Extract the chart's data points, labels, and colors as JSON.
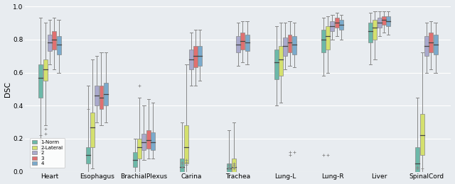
{
  "organs": [
    "Heart",
    "Esophagus",
    "BrachialPlexus",
    "Carina",
    "Trachea",
    "Lung-L",
    "Lung-R",
    "Liver",
    "SpinalCord"
  ],
  "series_labels": [
    "1-Norm",
    "2-Lateral",
    "2",
    "3",
    "4"
  ],
  "series_colors": [
    "#6cb8a8",
    "#d4e06e",
    "#a9a9cc",
    "#e07070",
    "#7aaacc"
  ],
  "background_color": "#e8ecf0",
  "ylabel": "DSC",
  "ylim": [
    0.0,
    1.0
  ],
  "data": {
    "Heart": [
      [
        0.12,
        0.45,
        0.57,
        0.65,
        0.93
      ],
      [
        0.28,
        0.55,
        0.62,
        0.68,
        0.9
      ],
      [
        0.65,
        0.73,
        0.78,
        0.83,
        0.92
      ],
      [
        0.62,
        0.74,
        0.8,
        0.85,
        0.93
      ],
      [
        0.6,
        0.71,
        0.77,
        0.82,
        0.92
      ]
    ],
    "Esophagus": [
      [
        0.0,
        0.05,
        0.1,
        0.15,
        0.52
      ],
      [
        0.02,
        0.15,
        0.27,
        0.36,
        0.68
      ],
      [
        0.3,
        0.4,
        0.46,
        0.52,
        0.7
      ],
      [
        0.28,
        0.38,
        0.45,
        0.52,
        0.72
      ],
      [
        0.3,
        0.4,
        0.47,
        0.54,
        0.72
      ]
    ],
    "BrachialPlexus": [
      [
        0.0,
        0.03,
        0.07,
        0.12,
        0.2
      ],
      [
        0.0,
        0.08,
        0.15,
        0.2,
        0.45
      ],
      [
        0.07,
        0.13,
        0.18,
        0.23,
        0.4
      ],
      [
        0.08,
        0.14,
        0.19,
        0.25,
        0.44
      ],
      [
        0.08,
        0.13,
        0.18,
        0.24,
        0.42
      ]
    ],
    "Carina": [
      [
        0.0,
        0.0,
        0.03,
        0.08,
        0.3
      ],
      [
        0.0,
        0.05,
        0.15,
        0.28,
        0.65
      ],
      [
        0.52,
        0.62,
        0.68,
        0.74,
        0.84
      ],
      [
        0.52,
        0.63,
        0.7,
        0.76,
        0.86
      ],
      [
        0.55,
        0.64,
        0.7,
        0.76,
        0.86
      ]
    ],
    "Trachea": [
      [
        0.0,
        0.0,
        0.02,
        0.05,
        0.25
      ],
      [
        0.0,
        0.0,
        0.03,
        0.08,
        0.3
      ],
      [
        0.64,
        0.72,
        0.77,
        0.82,
        0.9
      ],
      [
        0.66,
        0.74,
        0.79,
        0.84,
        0.91
      ],
      [
        0.65,
        0.73,
        0.78,
        0.83,
        0.91
      ]
    ],
    "Lung-L": [
      [
        0.4,
        0.56,
        0.66,
        0.74,
        0.88
      ],
      [
        0.42,
        0.58,
        0.68,
        0.76,
        0.9
      ],
      [
        0.62,
        0.7,
        0.76,
        0.81,
        0.9
      ],
      [
        0.64,
        0.72,
        0.78,
        0.83,
        0.91
      ],
      [
        0.63,
        0.71,
        0.77,
        0.82,
        0.9
      ]
    ],
    "Lung-R": [
      [
        0.58,
        0.72,
        0.8,
        0.86,
        0.93
      ],
      [
        0.6,
        0.74,
        0.82,
        0.88,
        0.94
      ],
      [
        0.8,
        0.85,
        0.88,
        0.91,
        0.95
      ],
      [
        0.82,
        0.87,
        0.9,
        0.93,
        0.96
      ],
      [
        0.8,
        0.86,
        0.89,
        0.92,
        0.95
      ]
    ],
    "Liver": [
      [
        0.65,
        0.78,
        0.85,
        0.9,
        0.96
      ],
      [
        0.68,
        0.8,
        0.87,
        0.92,
        0.97
      ],
      [
        0.82,
        0.87,
        0.9,
        0.93,
        0.97
      ],
      [
        0.84,
        0.89,
        0.92,
        0.94,
        0.97
      ],
      [
        0.83,
        0.88,
        0.91,
        0.94,
        0.97
      ]
    ],
    "SpinalCord": [
      [
        0.0,
        0.0,
        0.05,
        0.15,
        0.45
      ],
      [
        0.0,
        0.1,
        0.22,
        0.35,
        0.72
      ],
      [
        0.6,
        0.7,
        0.76,
        0.82,
        0.9
      ],
      [
        0.62,
        0.72,
        0.78,
        0.84,
        0.91
      ],
      [
        0.6,
        0.71,
        0.77,
        0.83,
        0.9
      ]
    ]
  },
  "outliers": {
    "Heart": {
      "0": [
        0.18,
        0.2,
        0.22
      ],
      "1": [
        0.23,
        0.26
      ]
    },
    "Esophagus": {
      "0": [
        0.38
      ],
      "1": []
    },
    "BrachialPlexus": {
      "1": [
        0.52
      ]
    },
    "Carina": {
      "0": [
        0.03,
        0.05,
        0.06
      ],
      "1": [
        0.04,
        0.05,
        0.06,
        0.07
      ]
    },
    "Trachea": {
      "0": [
        0.02,
        0.03,
        0.04,
        0.05
      ],
      "1": [
        0.02,
        0.03,
        0.04,
        0.05
      ]
    },
    "Lung-L": {
      "3": [
        0.1,
        0.12
      ],
      "4": [
        0.12
      ]
    },
    "Lung-R": {
      "0": [
        0.1
      ],
      "1": [
        0.1
      ]
    },
    "SpinalCord": {
      "0": [
        0.02,
        0.03
      ],
      "1": [
        0.02
      ]
    }
  }
}
